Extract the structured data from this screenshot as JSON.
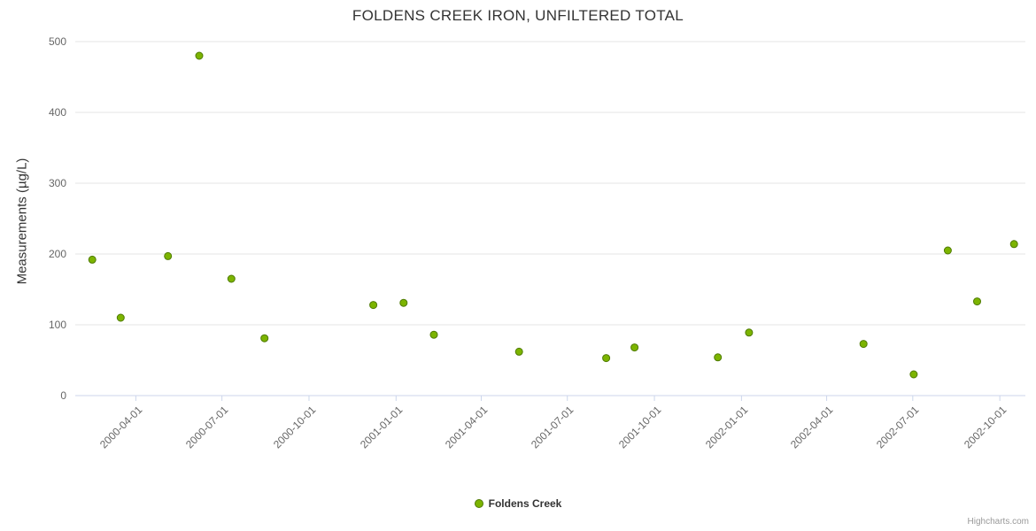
{
  "title": "FOLDENS CREEK IRON, UNFILTERED TOTAL",
  "legend": {
    "items": [
      {
        "label": "Foldens Creek",
        "marker_color": "#7cb400"
      }
    ]
  },
  "credits": "Highcharts.com",
  "colors": {
    "background": "#ffffff",
    "grid": "#e6e6e6",
    "axis_line": "#ccd6eb",
    "title_text": "#333333",
    "tick_text": "#666666",
    "marker_fill": "#7cb400",
    "marker_stroke": "#4e7a00"
  },
  "chart_data": {
    "type": "scatter",
    "title": "FOLDENS CREEK IRON, UNFILTERED TOTAL",
    "xlabel": "",
    "ylabel": "Measurements (µg/L)",
    "ylim": [
      0,
      500
    ],
    "yticks": [
      0,
      100,
      200,
      300,
      400,
      500
    ],
    "xlim": [
      "2000-01-28",
      "2002-10-28"
    ],
    "xticks": [
      "2000-04-01",
      "2000-07-01",
      "2000-10-01",
      "2001-01-01",
      "2001-04-01",
      "2001-07-01",
      "2001-10-01",
      "2002-01-01",
      "2002-04-01",
      "2002-07-01",
      "2002-10-01"
    ],
    "grid": true,
    "legend_position": "bottom",
    "series": [
      {
        "name": "Foldens Creek",
        "color": "#7cb400",
        "stroke": "#4e7a00",
        "points": [
          {
            "x": "2000-02-15",
            "y": 192
          },
          {
            "x": "2000-03-16",
            "y": 110
          },
          {
            "x": "2000-05-05",
            "y": 197
          },
          {
            "x": "2000-06-07",
            "y": 480
          },
          {
            "x": "2000-07-11",
            "y": 165
          },
          {
            "x": "2000-08-15",
            "y": 81
          },
          {
            "x": "2000-12-08",
            "y": 128
          },
          {
            "x": "2001-01-09",
            "y": 131
          },
          {
            "x": "2001-02-10",
            "y": 86
          },
          {
            "x": "2001-05-11",
            "y": 62
          },
          {
            "x": "2001-08-11",
            "y": 53
          },
          {
            "x": "2001-09-10",
            "y": 68
          },
          {
            "x": "2001-12-07",
            "y": 54
          },
          {
            "x": "2002-01-09",
            "y": 89
          },
          {
            "x": "2002-05-10",
            "y": 73
          },
          {
            "x": "2002-07-02",
            "y": 30
          },
          {
            "x": "2002-08-07",
            "y": 205
          },
          {
            "x": "2002-09-07",
            "y": 133
          },
          {
            "x": "2002-10-16",
            "y": 214
          }
        ]
      }
    ]
  }
}
